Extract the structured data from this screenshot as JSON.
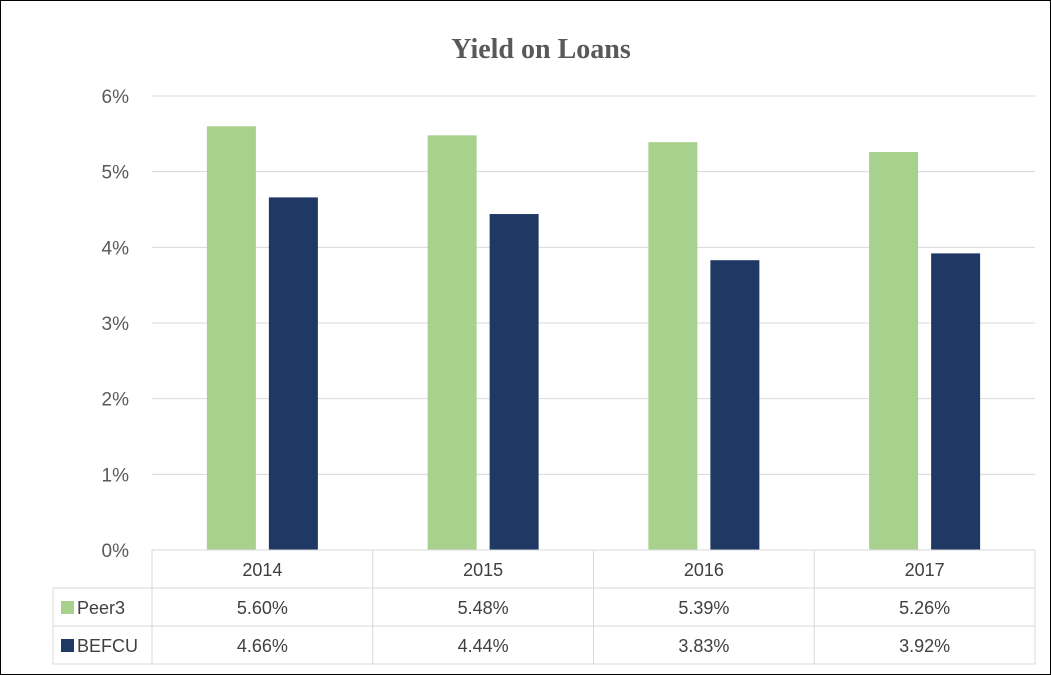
{
  "chart_data": {
    "type": "bar",
    "title": "Yield on Loans",
    "categories": [
      "2014",
      "2015",
      "2016",
      "2017"
    ],
    "series": [
      {
        "name": "Peer3",
        "color": "#a9d18e",
        "values": [
          5.6,
          5.48,
          5.39,
          5.26
        ],
        "labels": [
          "5.60%",
          "5.48%",
          "5.39%",
          "5.26%"
        ]
      },
      {
        "name": "BEFCU",
        "color": "#203864",
        "values": [
          4.66,
          4.44,
          3.83,
          3.92
        ],
        "labels": [
          "4.66%",
          "4.44%",
          "3.83%",
          "3.92%"
        ]
      }
    ],
    "ylim": [
      0,
      6
    ],
    "yticks": [
      "0%",
      "1%",
      "2%",
      "3%",
      "4%",
      "5%",
      "6%"
    ],
    "grid": true,
    "legend": "data-table",
    "xlabel": "",
    "ylabel": ""
  }
}
